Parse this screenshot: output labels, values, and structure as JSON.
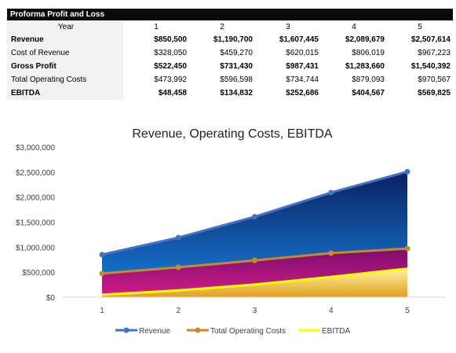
{
  "table": {
    "title": "Proforma Profit and Loss",
    "header_label": "Year",
    "years": [
      "1",
      "2",
      "3",
      "4",
      "5"
    ],
    "rows": [
      {
        "label": "Revenue",
        "bold": true,
        "values": [
          "$850,500",
          "$1,190,700",
          "$1,607,445",
          "$2,089,679",
          "$2,507,614"
        ]
      },
      {
        "label": "Cost of Revenue",
        "bold": false,
        "values": [
          "$328,050",
          "$459,270",
          "$620,015",
          "$806,019",
          "$967,223"
        ]
      },
      {
        "label": "Gross Profit",
        "bold": true,
        "values": [
          "$522,450",
          "$731,430",
          "$987,431",
          "$1,283,660",
          "$1,540,392"
        ]
      },
      {
        "label": "Total Operating Costs",
        "bold": false,
        "values": [
          "$473,992",
          "$596,598",
          "$734,744",
          "$879,093",
          "$970,567"
        ]
      },
      {
        "label": "EBITDA",
        "bold": true,
        "values": [
          "$48,458",
          "$134,832",
          "$252,686",
          "$404,567",
          "$569,825"
        ]
      }
    ]
  },
  "chart_data": {
    "type": "area",
    "title": "Revenue, Operating Costs, EBITDA",
    "xlabel": "",
    "ylabel": "",
    "x": [
      1,
      2,
      3,
      4,
      5
    ],
    "x_tick_labels": [
      "1",
      "2",
      "3",
      "4",
      "5"
    ],
    "ylim": [
      0,
      3000000
    ],
    "y_ticks": [
      0,
      500000,
      1000000,
      1500000,
      2000000,
      2500000,
      3000000
    ],
    "y_tick_labels": [
      "$0",
      "$500,000",
      "$1,000,000",
      "$1,500,000",
      "$2,000,000",
      "$2,500,000",
      "$3,000,000"
    ],
    "grid": false,
    "legend_position": "bottom",
    "series": [
      {
        "name": "Revenue",
        "color": "#4472c4",
        "values": [
          850500,
          1190700,
          1607445,
          2089679,
          2507614
        ]
      },
      {
        "name": "Total Operating Costs",
        "color": "#c8892c",
        "values": [
          473992,
          596598,
          734744,
          879093,
          970567
        ]
      },
      {
        "name": "EBITDA",
        "color": "#ffff00",
        "values": [
          48458,
          134832,
          252686,
          404567,
          569825
        ]
      }
    ],
    "fill_colors": {
      "revenue_band": [
        "#0c2060",
        "#1470c8"
      ],
      "operating_band": [
        "#7a0e6a",
        "#d01a8a"
      ],
      "ebitda_band": [
        "#e0a020",
        "#fff3a0"
      ]
    }
  }
}
